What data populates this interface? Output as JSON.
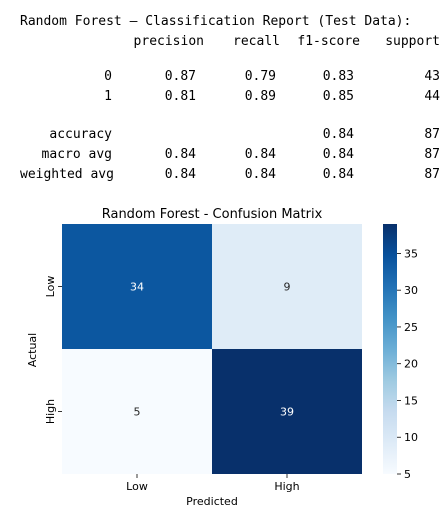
{
  "report": {
    "title": "Random Forest – Classification Report (Test Data):",
    "columns": [
      "precision",
      "recall",
      "f1-score",
      "support"
    ],
    "rows": [
      {
        "label": "0",
        "precision": "0.87",
        "recall": "0.79",
        "f1": "0.83",
        "support": "43"
      },
      {
        "label": "1",
        "precision": "0.81",
        "recall": "0.89",
        "f1": "0.85",
        "support": "44"
      }
    ],
    "summary": [
      {
        "label": "accuracy",
        "precision": "",
        "recall": "",
        "f1": "0.84",
        "support": "87"
      },
      {
        "label": "macro avg",
        "precision": "0.84",
        "recall": "0.84",
        "f1": "0.84",
        "support": "87"
      },
      {
        "label": "weighted avg",
        "precision": "0.84",
        "recall": "0.84",
        "f1": "0.84",
        "support": "87"
      }
    ]
  },
  "chart_data": {
    "type": "heatmap",
    "title": "Random Forest - Confusion Matrix",
    "xlabel": "Predicted",
    "ylabel": "Actual",
    "x_categories": [
      "Low",
      "High"
    ],
    "y_categories": [
      "Low",
      "High"
    ],
    "values": [
      [
        34,
        9
      ],
      [
        5,
        39
      ]
    ],
    "colormap": "Blues",
    "vmin": 5,
    "vmax": 39,
    "colorbar_ticks": [
      5,
      10,
      15,
      20,
      25,
      30,
      35
    ],
    "colors": {
      "low": "#f7fbff",
      "high": "#08306b"
    }
  }
}
